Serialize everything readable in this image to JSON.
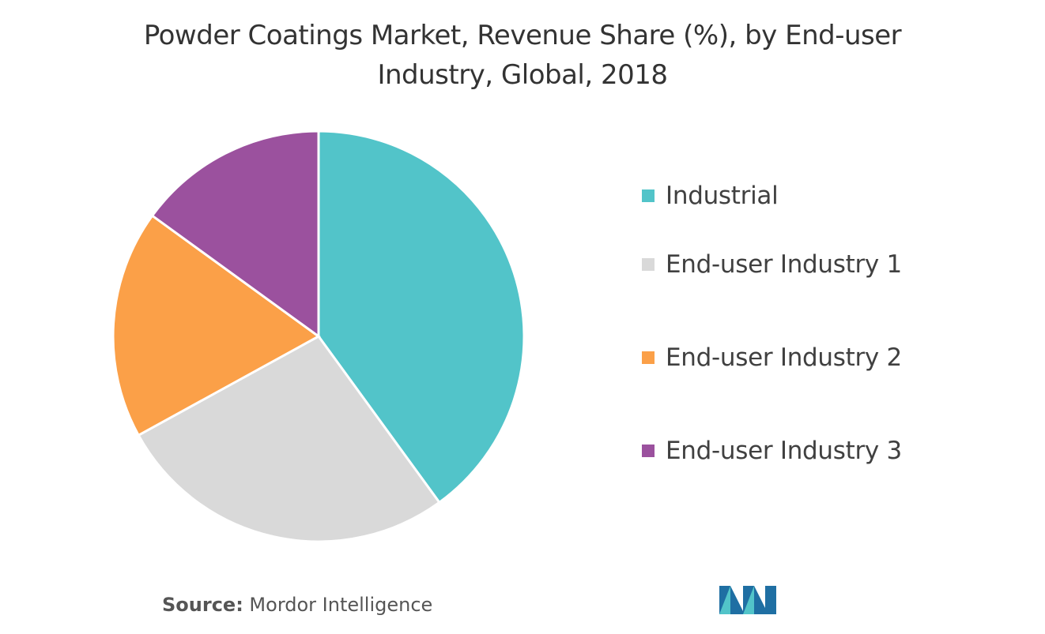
{
  "chart_data": {
    "type": "pie",
    "title_lines": [
      "Powder Coatings Market, Revenue Share (%), by End-user",
      "Industry,  Global, 2018"
    ],
    "slices": [
      {
        "name": "Industrial",
        "value": 40,
        "color": "#52c4c9"
      },
      {
        "name": "End-user Industry 1",
        "value": 27,
        "color": "#d9d9d9"
      },
      {
        "name": "End-user Industry 2",
        "value": 18,
        "color": "#fba048"
      },
      {
        "name": "End-user Industry 3",
        "value": 15,
        "color": "#9b519e"
      }
    ],
    "legend_position": "right",
    "start_angle": "top",
    "direction": "clockwise"
  },
  "footer": {
    "source_label": "Source:",
    "source_name": " Mordor Intelligence"
  },
  "logo": {
    "icon": "mordor-intelligence-logo-icon",
    "colors": [
      "#1f6fa3",
      "#52c4c9"
    ]
  }
}
